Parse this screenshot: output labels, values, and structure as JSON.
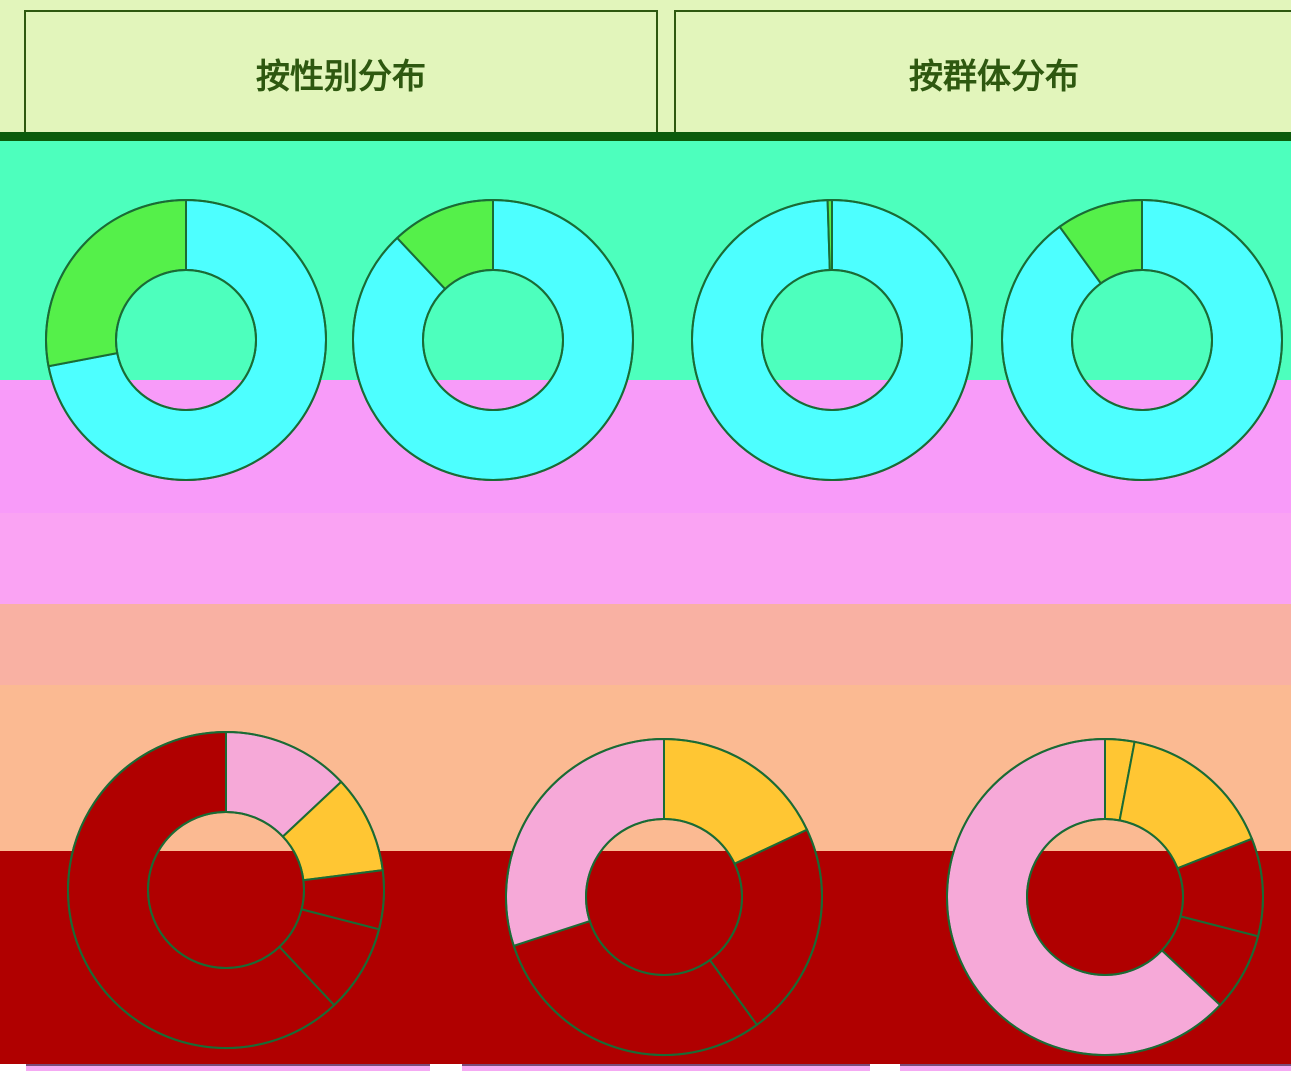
{
  "header": {
    "left_title": "按性别分布",
    "right_title": "按群体分布"
  },
  "colors": {
    "band_green": "#4dffbd",
    "band_pink": "#f89bf9",
    "band_pink_light": "#faa3f3",
    "band_salmon": "#f9b1a3",
    "band_orange": "#fbba92",
    "band_red": "#b00000",
    "slice_cyan": "#4dffff",
    "slice_green": "#55f04a",
    "slice_pink": "#f6a9d8",
    "slice_yellow": "#ffc633",
    "outline": "#1a6b35"
  },
  "chart_data": [
    {
      "type": "pie",
      "title": "",
      "values": [
        72,
        28
      ],
      "colors": [
        "#4dffff",
        "#55f04a"
      ],
      "legend": "top-left"
    },
    {
      "type": "pie",
      "title": "",
      "values": [
        88,
        12
      ],
      "colors": [
        "#4dffff",
        "#55f04a"
      ],
      "legend": "top-left"
    },
    {
      "type": "pie",
      "title": "",
      "values": [
        99.5,
        0.5
      ],
      "colors": [
        "#4dffff",
        "#55f04a"
      ],
      "legend": "top-left"
    },
    {
      "type": "pie",
      "title": "",
      "values": [
        90,
        10
      ],
      "colors": [
        "#4dffff",
        "#55f04a"
      ],
      "legend": "top-left"
    },
    {
      "type": "pie",
      "title": "",
      "values": [
        13,
        10,
        6,
        9,
        62
      ],
      "colors": [
        "#f6a9d8",
        "#ffc633",
        "#b00000",
        "#b00000",
        "#b00000"
      ],
      "legend": "top-center"
    },
    {
      "type": "pie",
      "title": "",
      "values": [
        18,
        22,
        30,
        30
      ],
      "colors": [
        "#ffc633",
        "#b00000",
        "#b00000",
        "#f6a9d8"
      ],
      "legend": "top-center"
    },
    {
      "type": "pie",
      "title": "",
      "values": [
        3,
        16,
        10,
        8,
        63
      ],
      "colors": [
        "#ffc633",
        "#ffc633",
        "#b00000",
        "#b00000",
        "#f6a9d8"
      ],
      "legend": "top-center"
    }
  ]
}
